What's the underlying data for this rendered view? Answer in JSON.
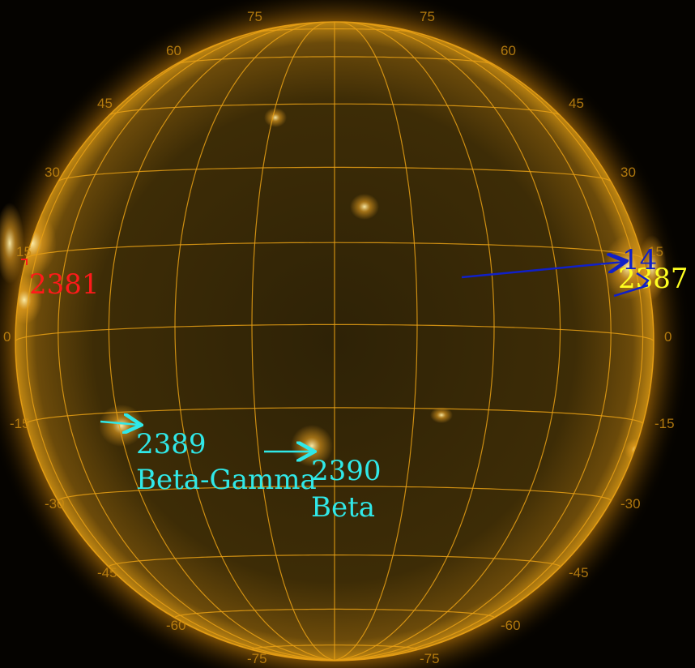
{
  "image": {
    "subject": "Sun",
    "colors": {
      "background": "#050300",
      "disk": "#4a3608",
      "grid": "#e8a015",
      "grid_label": "#c98a10",
      "red": "#ff1a1a",
      "cyan": "#30e8e8",
      "blue": "#1020c8",
      "yellow": "#ffff20"
    }
  },
  "grid_labels": {
    "top_left_75": "75",
    "top_right_75": "75",
    "left_60": "60",
    "right_60": "60",
    "left_45": "45",
    "right_45": "45",
    "left_30": "30",
    "right_30": "30",
    "left_15": "15",
    "right_15": "15",
    "left_0": "0",
    "right_0": "0",
    "left_m15": "-15",
    "right_m15": "-15",
    "left_m30": "-30",
    "right_m30": "-30",
    "left_m45": "-45",
    "right_m45": "-45",
    "left_m60": "-60",
    "right_m60": "-60",
    "bottom_left_m75": "-75",
    "bottom_right_m75": "-75"
  },
  "regions": {
    "r2381": {
      "number": "2381",
      "color": "#ff1a1a"
    },
    "r2389": {
      "number": "2389",
      "type": "Beta-Gamma",
      "color": "#30e8e8"
    },
    "r2390": {
      "number": "2390",
      "type": "Beta",
      "color": "#30e8e8"
    },
    "r14": {
      "number": "14",
      "color": "#1020c8"
    },
    "r2387": {
      "number": "2387",
      "color": "#ffff20"
    }
  }
}
